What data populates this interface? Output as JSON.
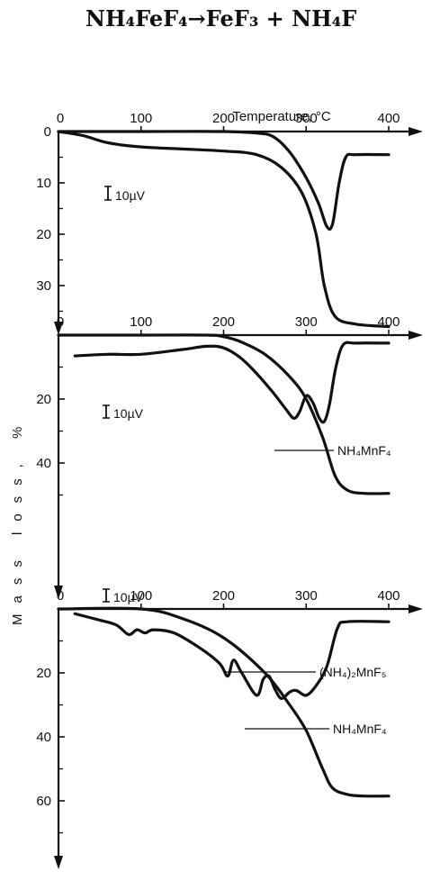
{
  "header": {
    "equation": "NH₄FeF₄→FeF₃ + NH₄F"
  },
  "figure": {
    "temperature_axis_label": "Temperature, °C",
    "mass_loss_axis_label": "Mass loss, %",
    "scale_bar_label": "10µV",
    "colors": {
      "ink": "#111111",
      "background": "#ffffff"
    }
  },
  "chart_data": [
    {
      "type": "line",
      "title": "",
      "xlabel": "Temperature, °C",
      "ylabel": "",
      "x_ticks": [
        "0",
        "100",
        "200",
        "300",
        "400"
      ],
      "y_ticks": [
        "0",
        "10",
        "20",
        "30"
      ],
      "xlim": [
        0,
        420
      ],
      "ylim": [
        0,
        40
      ],
      "curve_labels": [],
      "series": [
        {
          "name": "",
          "points": [
            [
              0,
              0
            ],
            [
              30,
              0.8
            ],
            [
              60,
              2.2
            ],
            [
              100,
              3
            ],
            [
              150,
              3.4
            ],
            [
              200,
              3.8
            ],
            [
              240,
              4.5
            ],
            [
              270,
              7
            ],
            [
              295,
              12
            ],
            [
              312,
              20
            ],
            [
              322,
              30
            ],
            [
              335,
              36
            ],
            [
              360,
              37.5
            ],
            [
              400,
              38
            ]
          ]
        },
        {
          "name": "",
          "points": [
            [
              0,
              0
            ],
            [
              100,
              0
            ],
            [
              200,
              0
            ],
            [
              240,
              0.3
            ],
            [
              260,
              1
            ],
            [
              280,
              4
            ],
            [
              300,
              9
            ],
            [
              315,
              14
            ],
            [
              325,
              18.5
            ],
            [
              332,
              18
            ],
            [
              340,
              10
            ],
            [
              348,
              5
            ],
            [
              360,
              4.5
            ],
            [
              400,
              4.5
            ]
          ]
        }
      ]
    },
    {
      "type": "line",
      "title": "",
      "xlabel": "",
      "ylabel": "",
      "x_ticks": [
        "0",
        "100",
        "200",
        "300",
        "400"
      ],
      "y_ticks": [
        "20",
        "40"
      ],
      "xlim": [
        0,
        420
      ],
      "ylim": [
        0,
        58
      ],
      "curve_labels": [
        "NH₄MnF₄"
      ],
      "series": [
        {
          "name": "",
          "points": [
            [
              20,
              6.5
            ],
            [
              60,
              6
            ],
            [
              100,
              6
            ],
            [
              150,
              4.5
            ],
            [
              180,
              3.5
            ],
            [
              200,
              4
            ],
            [
              220,
              7
            ],
            [
              240,
              12
            ],
            [
              260,
              18
            ],
            [
              275,
              23
            ],
            [
              285,
              26
            ],
            [
              292,
              24
            ],
            [
              300,
              19
            ],
            [
              308,
              21
            ],
            [
              316,
              26
            ],
            [
              322,
              27
            ],
            [
              328,
              22
            ],
            [
              336,
              10
            ],
            [
              345,
              3
            ],
            [
              360,
              2.5
            ],
            [
              400,
              2.5
            ]
          ]
        },
        {
          "name": "",
          "points": [
            [
              0,
              0
            ],
            [
              100,
              0
            ],
            [
              180,
              0
            ],
            [
              200,
              0.5
            ],
            [
              220,
              2
            ],
            [
              250,
              6
            ],
            [
              280,
              13
            ],
            [
              300,
              20
            ],
            [
              320,
              32
            ],
            [
              335,
              44
            ],
            [
              350,
              48.5
            ],
            [
              370,
              49.5
            ],
            [
              400,
              49.5
            ]
          ]
        }
      ]
    },
    {
      "type": "line",
      "title": "",
      "xlabel": "",
      "ylabel": "",
      "x_ticks": [
        "0",
        "100",
        "200",
        "300",
        "400"
      ],
      "y_ticks": [
        "20",
        "40",
        "60"
      ],
      "xlim": [
        0,
        420
      ],
      "ylim": [
        0,
        72
      ],
      "curve_labels": [
        "(NH₄)₂MnF₅",
        "NH₄MnF₄"
      ],
      "series": [
        {
          "name": "",
          "points": [
            [
              20,
              1.5
            ],
            [
              50,
              3.5
            ],
            [
              70,
              5
            ],
            [
              85,
              8
            ],
            [
              95,
              6.5
            ],
            [
              105,
              7.5
            ],
            [
              115,
              6.5
            ],
            [
              140,
              7.5
            ],
            [
              170,
              12
            ],
            [
              195,
              17
            ],
            [
              205,
              21
            ],
            [
              212,
              16
            ],
            [
              222,
              20
            ],
            [
              240,
              27
            ],
            [
              248,
              22
            ],
            [
              255,
              21
            ],
            [
              262,
              25
            ],
            [
              270,
              28
            ],
            [
              280,
              26
            ],
            [
              288,
              25.5
            ],
            [
              300,
              27
            ],
            [
              312,
              24
            ],
            [
              325,
              18
            ],
            [
              338,
              6
            ],
            [
              350,
              4
            ],
            [
              400,
              4
            ]
          ]
        },
        {
          "name": "",
          "points": [
            [
              0,
              0
            ],
            [
              100,
              0
            ],
            [
              150,
              3
            ],
            [
              200,
              9
            ],
            [
              250,
              20
            ],
            [
              280,
              30
            ],
            [
              300,
              38
            ],
            [
              320,
              50
            ],
            [
              332,
              56
            ],
            [
              350,
              58
            ],
            [
              370,
              58.5
            ],
            [
              400,
              58.5
            ]
          ]
        }
      ]
    }
  ]
}
